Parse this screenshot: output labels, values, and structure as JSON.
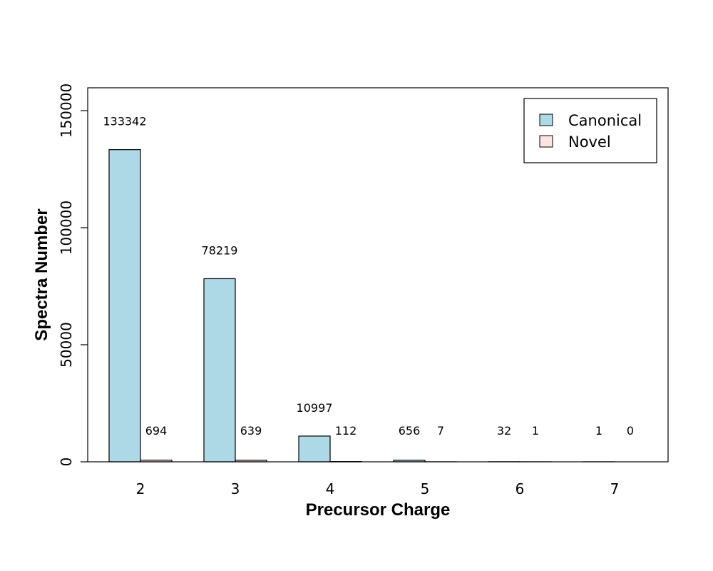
{
  "chart_data": {
    "type": "bar",
    "title": "",
    "xlabel": "Precursor Charge",
    "ylabel": "Spectra Number",
    "categories": [
      "2",
      "3",
      "4",
      "5",
      "6",
      "7"
    ],
    "series": [
      {
        "name": "Canonical",
        "color": "#add8e6",
        "values": [
          133342,
          78219,
          10997,
          656,
          32,
          1
        ]
      },
      {
        "name": "Novel",
        "color": "#ffe4e1",
        "values": [
          694,
          639,
          112,
          7,
          1,
          0
        ]
      }
    ],
    "ylim": [
      0,
      160000
    ],
    "yticks": [
      0,
      50000,
      100000,
      150000
    ],
    "grid": false,
    "legend_position": "top-right"
  }
}
